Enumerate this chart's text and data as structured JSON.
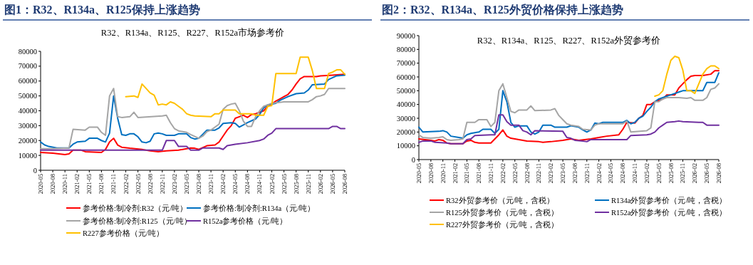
{
  "chart_data": [
    {
      "type": "line",
      "title": "图1：R32、R134a、R125保持上涨趋势",
      "subtitle": "R32、R134a、R125、R227、R152a市场参考价",
      "legend": "bottom",
      "xlim": [
        "2020-05",
        "2026-08"
      ],
      "xticks": [
        "2020-05",
        "2020-08",
        "2020-11",
        "2021-02",
        "2021-05",
        "2021-08",
        "2021-11",
        "2022-02",
        "2022-05",
        "2022-08",
        "2022-11",
        "2023-02",
        "2023-05",
        "2023-08",
        "2023-11",
        "2024-02",
        "2024-05",
        "2024-08",
        "2024-11",
        "2025-02",
        "2025-05",
        "2025-08",
        "2025-11",
        "2026-02",
        "2026-05",
        "2026-08"
      ],
      "ylim": [
        0,
        80000
      ],
      "yticks": [
        0,
        10000,
        20000,
        30000,
        40000,
        50000,
        60000,
        70000,
        80000
      ],
      "series": [
        {
          "name": "参考价格:制冷剂:R32（元/吨）",
          "color": "#ff0000",
          "x": [
            "2020-05",
            "2020-08",
            "2020-11",
            "2020-12",
            "2021-01",
            "2021-03",
            "2021-04",
            "2021-08",
            "2021-09",
            "2021-10",
            "2021-11",
            "2021-12",
            "2022-01",
            "2022-03",
            "2022-06",
            "2022-08",
            "2022-10",
            "2022-12",
            "2023-03",
            "2023-05",
            "2023-06",
            "2023-07",
            "2023-08",
            "2023-10",
            "2023-12",
            "2024-01",
            "2024-02",
            "2024-03",
            "2024-04",
            "2024-05",
            "2024-06",
            "2024-07",
            "2024-08",
            "2024-09",
            "2024-10",
            "2024-12",
            "2025-01",
            "2025-02",
            "2025-03",
            "2025-04",
            "2025-05",
            "2025-06",
            "2025-07",
            "2025-08",
            "2025-09",
            "2025-10",
            "2026-01",
            "2026-02",
            "2026-05",
            "2026-08"
          ],
          "values": [
            12000,
            11500,
            10500,
            11000,
            13500,
            13500,
            12500,
            12000,
            14000,
            19000,
            21500,
            17000,
            15500,
            14800,
            14000,
            13000,
            12500,
            13000,
            13500,
            14500,
            15000,
            14800,
            14000,
            16500,
            17000,
            19000,
            23000,
            27000,
            30000,
            35000,
            36000,
            37000,
            35500,
            37500,
            38000,
            40000,
            43000,
            44500,
            46500,
            48000,
            49500,
            51000,
            54000,
            58000,
            61500,
            63000,
            63000,
            63500,
            64000,
            64500
          ]
        },
        {
          "name": "参考价格:制冷剂:R134a（元/吨）",
          "color": "#0070c0",
          "x": [
            "2020-05",
            "2020-06",
            "2020-07",
            "2020-09",
            "2020-12",
            "2021-01",
            "2021-02",
            "2021-04",
            "2021-05",
            "2021-07",
            "2021-08",
            "2021-09",
            "2021-10",
            "2021-11",
            "2021-12",
            "2022-01",
            "2022-02",
            "2022-03",
            "2022-04",
            "2022-05",
            "2022-06",
            "2022-07",
            "2022-08",
            "2022-09",
            "2022-10",
            "2022-11",
            "2022-12",
            "2023-02",
            "2023-03",
            "2023-05",
            "2023-06",
            "2023-07",
            "2023-08",
            "2023-10",
            "2023-12",
            "2024-01",
            "2024-02",
            "2024-04",
            "2024-05",
            "2024-06",
            "2024-07",
            "2024-08",
            "2024-10",
            "2024-11",
            "2024-12",
            "2025-01",
            "2025-03",
            "2025-04",
            "2025-06",
            "2025-08",
            "2025-10",
            "2025-11",
            "2025-12",
            "2026-03",
            "2026-04",
            "2026-06",
            "2026-08"
          ],
          "values": [
            19000,
            17000,
            16000,
            15000,
            15000,
            17500,
            19000,
            19500,
            21500,
            21500,
            20000,
            19000,
            25000,
            50000,
            35000,
            24000,
            23500,
            24500,
            24500,
            22500,
            19000,
            18500,
            19500,
            24500,
            25000,
            24500,
            23500,
            23500,
            24500,
            24500,
            22000,
            21000,
            21500,
            27000,
            27000,
            28500,
            31500,
            32000,
            31500,
            29000,
            30500,
            32000,
            34500,
            37500,
            42000,
            44000,
            45000,
            47000,
            49500,
            51500,
            52000,
            54000,
            57500,
            58000,
            61000,
            63500,
            64000
          ]
        },
        {
          "name": "参考价格:制冷剂:R125（元/吨）",
          "color": "#a5a5a5",
          "x": [
            "2020-05",
            "2020-07",
            "2020-12",
            "2021-01",
            "2021-04",
            "2021-05",
            "2021-07",
            "2021-08",
            "2021-09",
            "2021-10",
            "2021-11",
            "2021-12",
            "2022-01",
            "2022-03",
            "2022-04",
            "2022-05",
            "2022-11",
            "2022-12",
            "2023-01",
            "2023-02",
            "2023-03",
            "2023-05",
            "2023-06",
            "2023-08",
            "2023-09",
            "2023-10",
            "2023-11",
            "2024-01",
            "2024-02",
            "2024-03",
            "2024-04",
            "2024-05",
            "2024-06",
            "2024-07",
            "2024-08",
            "2024-09",
            "2024-10",
            "2024-11",
            "2024-12",
            "2025-01",
            "2025-02",
            "2025-05",
            "2025-11",
            "2025-12",
            "2026-01",
            "2026-02",
            "2026-03",
            "2026-04",
            "2026-08"
          ],
          "values": [
            14500,
            14500,
            15000,
            27500,
            27000,
            29000,
            29000,
            25500,
            23500,
            50000,
            55000,
            36000,
            35500,
            36000,
            39000,
            35500,
            36500,
            37000,
            32000,
            28000,
            26500,
            25500,
            24000,
            21500,
            23000,
            26000,
            27000,
            31000,
            41000,
            43500,
            44500,
            45000,
            40000,
            33000,
            29500,
            29500,
            36000,
            40000,
            43000,
            44000,
            45000,
            46000,
            46000,
            47500,
            49500,
            50000,
            51000,
            55000,
            55000
          ]
        },
        {
          "name": "R152a参考价格（元/吨）",
          "color": "#7030a0",
          "x": [
            "2020-05",
            "2022-11",
            "2022-12",
            "2023-02",
            "2023-03",
            "2023-05",
            "2023-06",
            "2023-08",
            "2023-09",
            "2024-01",
            "2024-02",
            "2024-03",
            "2024-05",
            "2024-08",
            "2024-11",
            "2024-12",
            "2025-01",
            "2025-02",
            "2025-03",
            "2026-04",
            "2026-05",
            "2026-06",
            "2026-07",
            "2026-08"
          ],
          "values": [
            13500,
            13500,
            20000,
            20000,
            16000,
            16000,
            13500,
            13500,
            15000,
            15000,
            14000,
            16500,
            17500,
            18500,
            20000,
            21000,
            23500,
            25000,
            28000,
            28000,
            29500,
            29500,
            28000,
            28000
          ]
        },
        {
          "name": "R227参考价格（元/吨）",
          "color": "#ffc000",
          "x": [
            "2022-02",
            "2022-04",
            "2022-05",
            "2022-06",
            "2022-07",
            "2022-08",
            "2022-09",
            "2022-10",
            "2022-11",
            "2022-12",
            "2023-01",
            "2023-02",
            "2023-03",
            "2023-04",
            "2023-05",
            "2023-06",
            "2023-07",
            "2023-11",
            "2023-12",
            "2024-01",
            "2024-02",
            "2024-05",
            "2024-06",
            "2024-09",
            "2024-10",
            "2024-12",
            "2025-01",
            "2025-02",
            "2025-03",
            "2025-08",
            "2025-09",
            "2025-11",
            "2025-12",
            "2026-01",
            "2026-03",
            "2026-04",
            "2026-05",
            "2026-06",
            "2026-07",
            "2026-08"
          ],
          "values": [
            49500,
            50000,
            49000,
            58000,
            55000,
            52000,
            50500,
            44000,
            44500,
            44000,
            46000,
            45000,
            43000,
            41000,
            38000,
            37000,
            36500,
            36000,
            38000,
            38000,
            40500,
            40500,
            38000,
            38000,
            37000,
            37000,
            43000,
            43500,
            65000,
            65000,
            76000,
            76000,
            67000,
            55000,
            55000,
            65000,
            66000,
            67500,
            67500,
            64500
          ]
        }
      ]
    },
    {
      "type": "line",
      "title": "图2：R32、R134a、R125外贸价格保持上涨趋势",
      "subtitle": "R32、R134a、R125、R227、R152a外贸参考价",
      "legend": "bottom",
      "xlim": [
        "2020-05",
        "2026-08"
      ],
      "xticks": [
        "2020-05",
        "2020-08",
        "2020-11",
        "2021-02",
        "2021-05",
        "2021-08",
        "2021-11",
        "2022-02",
        "2022-05",
        "2022-08",
        "2022-11",
        "2023-02",
        "2023-05",
        "2023-08",
        "2023-11",
        "2024-02",
        "2024-05",
        "2024-08",
        "2024-11",
        "2025-02",
        "2025-05",
        "2025-08",
        "2025-11",
        "2026-02",
        "2026-05",
        "2026-08"
      ],
      "ylim": [
        0,
        90000
      ],
      "yticks": [
        0,
        10000,
        20000,
        30000,
        40000,
        50000,
        60000,
        70000,
        80000,
        90000
      ],
      "series": [
        {
          "name": "R32外贸参考价（元/吨，含税）",
          "color": "#ff0000",
          "x": [
            "2020-05",
            "2020-08",
            "2020-09",
            "2020-10",
            "2020-11",
            "2020-12",
            "2021-01",
            "2021-04",
            "2021-05",
            "2021-06",
            "2021-07",
            "2021-08",
            "2021-11",
            "2021-12",
            "2022-01",
            "2022-02",
            "2022-03",
            "2022-04",
            "2022-06",
            "2022-08",
            "2022-11",
            "2022-12",
            "2023-02",
            "2023-05",
            "2023-07",
            "2023-09",
            "2023-12",
            "2024-02",
            "2024-04",
            "2024-07",
            "2024-08",
            "2024-09",
            "2024-11",
            "2024-12",
            "2025-01",
            "2025-02",
            "2025-03",
            "2025-04",
            "2025-06",
            "2025-07",
            "2025-09",
            "2025-10",
            "2025-11",
            "2025-12",
            "2026-01",
            "2026-02",
            "2026-04",
            "2026-06",
            "2026-07",
            "2026-08"
          ],
          "values": [
            15000,
            14000,
            13500,
            14500,
            14000,
            12000,
            11500,
            11500,
            13500,
            14000,
            12500,
            12000,
            12000,
            15000,
            18000,
            21500,
            17000,
            15500,
            14500,
            13500,
            13000,
            12500,
            13000,
            14000,
            15000,
            14000,
            15000,
            16000,
            17000,
            18000,
            22000,
            27000,
            26500,
            30000,
            32000,
            40000,
            40000,
            42000,
            44000,
            47000,
            47000,
            52000,
            55000,
            58000,
            60500,
            61000,
            61000,
            62000,
            64500,
            64500
          ]
        },
        {
          "name": "R134a外贸参考价（元/吨，含税）",
          "color": "#0070c0",
          "x": [
            "2020-05",
            "2020-06",
            "2020-10",
            "2020-11",
            "2020-12",
            "2021-01",
            "2021-03",
            "2021-04",
            "2021-05",
            "2021-06",
            "2021-08",
            "2021-09",
            "2021-11",
            "2021-12",
            "2022-01",
            "2022-02",
            "2022-03",
            "2022-04",
            "2022-05",
            "2022-06",
            "2022-08",
            "2022-09",
            "2022-10",
            "2022-11",
            "2022-12",
            "2023-02",
            "2023-03",
            "2023-06",
            "2023-07",
            "2023-09",
            "2023-10",
            "2023-11",
            "2023-12",
            "2024-01",
            "2024-02",
            "2024-03",
            "2024-08",
            "2024-09",
            "2024-10",
            "2024-11",
            "2024-12",
            "2025-01",
            "2025-02",
            "2025-03",
            "2025-04",
            "2025-05",
            "2025-07",
            "2025-08",
            "2025-10",
            "2025-11",
            "2026-04",
            "2026-05",
            "2026-07",
            "2026-08"
          ],
          "values": [
            23500,
            20000,
            20500,
            21000,
            20000,
            17000,
            16000,
            15500,
            18000,
            19000,
            20000,
            22000,
            22000,
            19000,
            22000,
            50000,
            42000,
            27000,
            23500,
            24500,
            24500,
            20000,
            18500,
            20000,
            25000,
            25000,
            23500,
            23500,
            24500,
            23500,
            21500,
            20000,
            21500,
            26500,
            26000,
            27000,
            27000,
            28500,
            26000,
            27000,
            30000,
            31500,
            35000,
            38000,
            42000,
            44000,
            46000,
            47000,
            49000,
            50000,
            50000,
            56000,
            56000,
            63000
          ]
        },
        {
          "name": "R125外贸参考价（元/吨，含税）",
          "color": "#a5a5a5",
          "x": [
            "2020-05",
            "2020-06",
            "2020-08",
            "2020-10",
            "2020-11",
            "2020-12",
            "2021-01",
            "2021-03",
            "2021-04",
            "2021-05",
            "2021-07",
            "2021-08",
            "2021-10",
            "2021-11",
            "2021-12",
            "2022-01",
            "2022-02",
            "2022-03",
            "2022-04",
            "2022-05",
            "2022-06",
            "2022-08",
            "2022-09",
            "2022-10",
            "2023-02",
            "2023-03",
            "2023-04",
            "2023-05",
            "2023-06",
            "2023-07",
            "2023-09",
            "2023-10",
            "2023-12",
            "2024-01",
            "2024-02",
            "2024-08",
            "2024-09",
            "2024-10",
            "2025-02",
            "2025-03",
            "2025-04",
            "2025-05",
            "2025-06",
            "2025-07",
            "2025-10",
            "2025-12",
            "2026-01",
            "2026-02",
            "2026-04",
            "2026-05",
            "2026-06",
            "2026-07",
            "2026-08"
          ],
          "values": [
            18000,
            16000,
            15500,
            16000,
            16500,
            14500,
            14000,
            14500,
            15000,
            27000,
            27000,
            29000,
            29000,
            24000,
            27000,
            50000,
            55000,
            45000,
            35000,
            34000,
            36000,
            36000,
            39000,
            35500,
            36000,
            37000,
            32000,
            29000,
            26000,
            25000,
            24000,
            22000,
            21500,
            25000,
            26000,
            26000,
            28000,
            20000,
            21000,
            23000,
            42000,
            42000,
            44000,
            45000,
            45000,
            44500,
            45000,
            43000,
            43000,
            45000,
            51000,
            52000,
            55000
          ]
        },
        {
          "name": "R152a外贸参考价（元/吨，含税）",
          "color": "#7030a0",
          "x": [
            "2020-05",
            "2020-06",
            "2020-08",
            "2020-09",
            "2020-12",
            "2021-01",
            "2021-04",
            "2021-05",
            "2021-06",
            "2021-07",
            "2021-11",
            "2021-12",
            "2022-01",
            "2022-02",
            "2022-03",
            "2022-04",
            "2022-06",
            "2022-07",
            "2022-08",
            "2022-09",
            "2022-10",
            "2023-05",
            "2023-06",
            "2023-07",
            "2023-08",
            "2023-10",
            "2023-11",
            "2023-12",
            "2024-09",
            "2024-10",
            "2025-02",
            "2025-03",
            "2025-04",
            "2025-05",
            "2025-06",
            "2025-07",
            "2025-09",
            "2025-10",
            "2025-11",
            "2026-03",
            "2026-04",
            "2026-05",
            "2026-08"
          ],
          "values": [
            12500,
            13500,
            13500,
            12500,
            12000,
            11500,
            11500,
            14500,
            15000,
            17500,
            18000,
            18000,
            32500,
            32500,
            27500,
            25000,
            25000,
            21000,
            20000,
            18000,
            21000,
            20500,
            16000,
            15500,
            14000,
            13500,
            13000,
            14500,
            14500,
            17500,
            18000,
            18500,
            20000,
            23000,
            25000,
            27000,
            27500,
            28000,
            27500,
            27000,
            27000,
            25000,
            25000
          ]
        },
        {
          "name": "R227外贸参考价（元/吨，含税）",
          "color": "#ffc000",
          "x": [
            "2025-04",
            "2025-05",
            "2025-06",
            "2025-07",
            "2025-08",
            "2025-09",
            "2025-10",
            "2025-11",
            "2025-12",
            "2026-01",
            "2026-02",
            "2026-03",
            "2026-04",
            "2026-05",
            "2026-06",
            "2026-07",
            "2026-08"
          ],
          "values": [
            46000,
            47000,
            50000,
            62000,
            72000,
            75000,
            74000,
            65000,
            50000,
            50000,
            48000,
            55000,
            62000,
            66000,
            68000,
            68000,
            66000
          ]
        }
      ]
    }
  ]
}
